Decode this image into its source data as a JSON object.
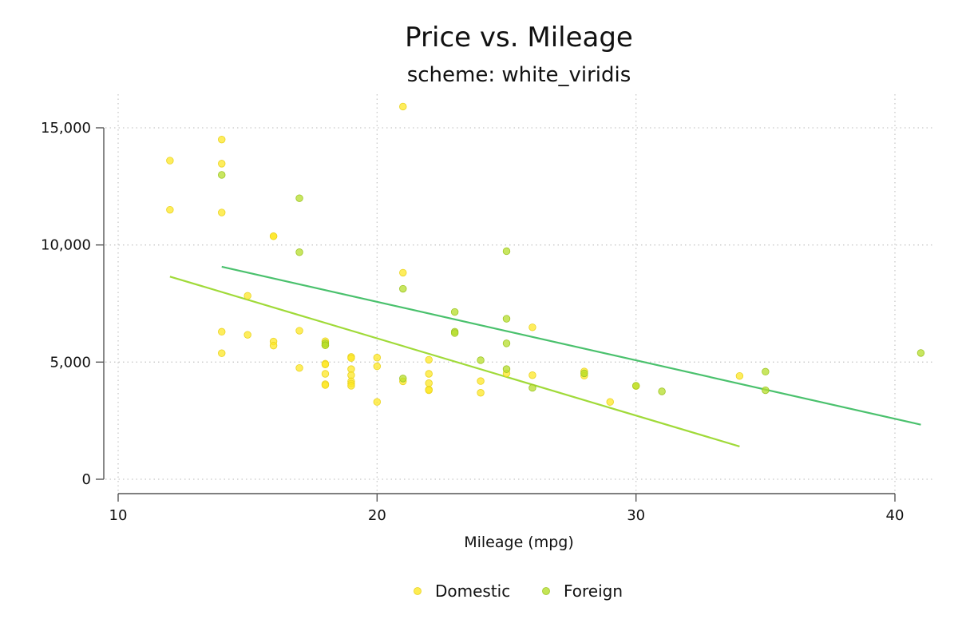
{
  "chart_data": {
    "type": "scatter",
    "title": "Price vs. Mileage",
    "subtitle": "scheme: white_viridis",
    "xlabel": "Mileage (mpg)",
    "ylabel": "",
    "xlim": [
      10,
      41.5
    ],
    "ylim": [
      -400,
      16000
    ],
    "xticks": [
      10,
      20,
      30,
      40
    ],
    "yticks": [
      0,
      5000,
      10000,
      15000
    ],
    "ytick_labels": [
      "0",
      "5,000",
      "10,000",
      "15,000"
    ],
    "grid": true,
    "legend_position": "bottom-center",
    "series": [
      {
        "name": "Domestic",
        "color": "#fde725",
        "points": [
          [
            12,
            13600
          ],
          [
            12,
            11500
          ],
          [
            14,
            14500
          ],
          [
            14,
            13470
          ],
          [
            14,
            11385
          ],
          [
            14,
            6295
          ],
          [
            14,
            5380
          ],
          [
            15,
            7830
          ],
          [
            15,
            6165
          ],
          [
            16,
            10375
          ],
          [
            16,
            10370
          ],
          [
            16,
            5880
          ],
          [
            16,
            5705
          ],
          [
            17,
            6340
          ],
          [
            17,
            4750
          ],
          [
            18,
            5890
          ],
          [
            18,
            5720
          ],
          [
            18,
            4930
          ],
          [
            18,
            4900
          ],
          [
            18,
            4500
          ],
          [
            18,
            4060
          ],
          [
            18,
            4020
          ],
          [
            19,
            5220
          ],
          [
            19,
            5170
          ],
          [
            19,
            4700
          ],
          [
            19,
            4440
          ],
          [
            19,
            4180
          ],
          [
            19,
            4080
          ],
          [
            19,
            3990
          ],
          [
            20,
            5190
          ],
          [
            20,
            4820
          ],
          [
            20,
            3300
          ],
          [
            21,
            15905
          ],
          [
            21,
            8815
          ],
          [
            21,
            4180
          ],
          [
            22,
            5100
          ],
          [
            22,
            4500
          ],
          [
            22,
            4100
          ],
          [
            22,
            3830
          ],
          [
            22,
            3800
          ],
          [
            24,
            4190
          ],
          [
            24,
            3690
          ],
          [
            25,
            4520
          ],
          [
            26,
            6485
          ],
          [
            26,
            4440
          ],
          [
            28,
            4600
          ],
          [
            28,
            4420
          ],
          [
            29,
            3300
          ],
          [
            30,
            3980
          ],
          [
            34,
            4410
          ]
        ]
      },
      {
        "name": "Foreign",
        "color": "#b5de2b",
        "points": [
          [
            14,
            12990
          ],
          [
            17,
            11995
          ],
          [
            17,
            9690
          ],
          [
            18,
            5800
          ],
          [
            18,
            5720
          ],
          [
            21,
            8130
          ],
          [
            21,
            4300
          ],
          [
            23,
            7140
          ],
          [
            23,
            6295
          ],
          [
            23,
            6240
          ],
          [
            24,
            5080
          ],
          [
            25,
            9735
          ],
          [
            25,
            6850
          ],
          [
            25,
            5800
          ],
          [
            25,
            4700
          ],
          [
            26,
            3900
          ],
          [
            28,
            4520
          ],
          [
            30,
            3990
          ],
          [
            31,
            3750
          ],
          [
            35,
            4590
          ],
          [
            35,
            3800
          ],
          [
            41,
            5390
          ]
        ]
      }
    ],
    "fit_lines": [
      {
        "series": "Domestic",
        "color": "#a0da39",
        "x": [
          12,
          34
        ],
        "y": [
          8650,
          1400
        ]
      },
      {
        "series": "Foreign",
        "color": "#4ac16d",
        "x": [
          14,
          41
        ],
        "y": [
          9070,
          2330
        ]
      }
    ]
  }
}
